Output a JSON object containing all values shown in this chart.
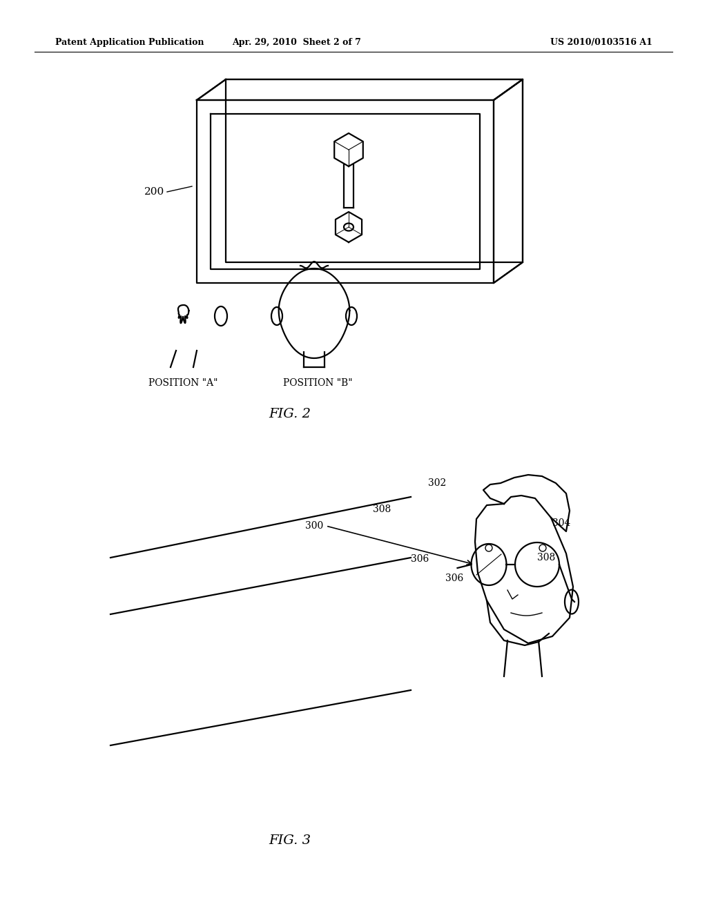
{
  "bg_color": "#ffffff",
  "header_left": "Patent Application Publication",
  "header_center": "Apr. 29, 2010  Sheet 2 of 7",
  "header_right": "US 2010/0103516 A1",
  "fig2_label": "FIG. 2",
  "fig3_label": "FIG. 3",
  "label_200": "200",
  "label_pos_a": "POSITION \"A\"",
  "label_pos_b": "POSITION \"B\"",
  "label_300": "300",
  "label_302": "302",
  "label_304": "304",
  "label_306_1": "306",
  "label_306_2": "306",
  "label_308_1": "308",
  "label_308_2": "308"
}
